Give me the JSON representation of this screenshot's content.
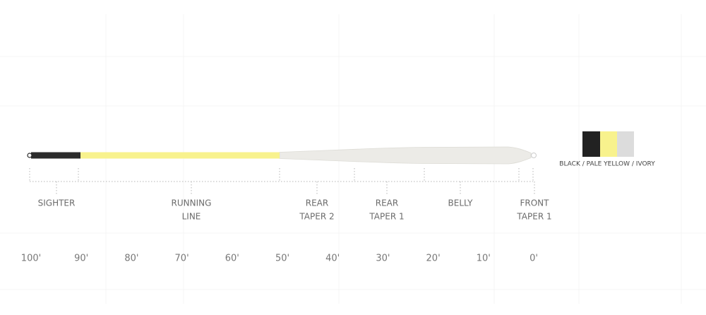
{
  "segments": [
    {
      "label": [
        "SIGHTER"
      ]
    },
    {
      "label": [
        "RUNNING",
        "LINE"
      ]
    },
    {
      "label": [
        "REAR",
        "TAPER 2"
      ]
    },
    {
      "label": [
        "REAR",
        "TAPER 1"
      ]
    },
    {
      "label": [
        "BELLY"
      ]
    },
    {
      "label": [
        "FRONT",
        "TAPER 1"
      ]
    }
  ],
  "scale": [
    "100'",
    "90'",
    "80'",
    "70'",
    "60'",
    "50'",
    "40'",
    "30'",
    "20'",
    "10'",
    "0'"
  ],
  "color_label": "BLACK / PALE YELLOW / IVORY"
}
